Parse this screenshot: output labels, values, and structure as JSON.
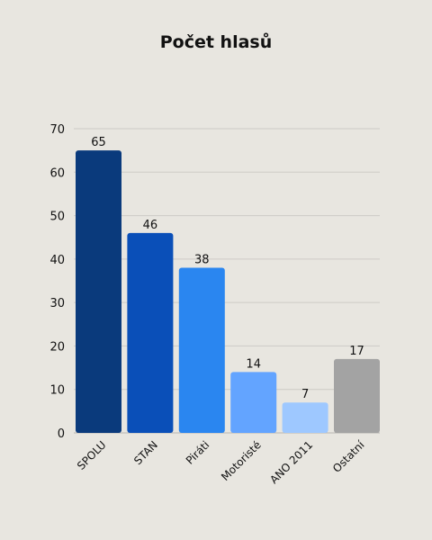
{
  "chart_data": {
    "type": "bar",
    "title": "Počet hlasů",
    "xlabel": "",
    "ylabel": "",
    "categories": [
      "SPOLU",
      "STAN",
      "Piráti",
      "Motoristé",
      "ANO 2011",
      "Ostatní"
    ],
    "values": [
      65,
      46,
      38,
      14,
      7,
      17
    ],
    "colors": [
      "#0a3a7c",
      "#0a4fb8",
      "#2a86f0",
      "#63a4ff",
      "#9ec8ff",
      "#a3a3a3"
    ],
    "ylim": [
      0,
      70
    ],
    "yticks": [
      0,
      10,
      20,
      30,
      40,
      50,
      60,
      70
    ],
    "grid": true,
    "legend": "none"
  }
}
